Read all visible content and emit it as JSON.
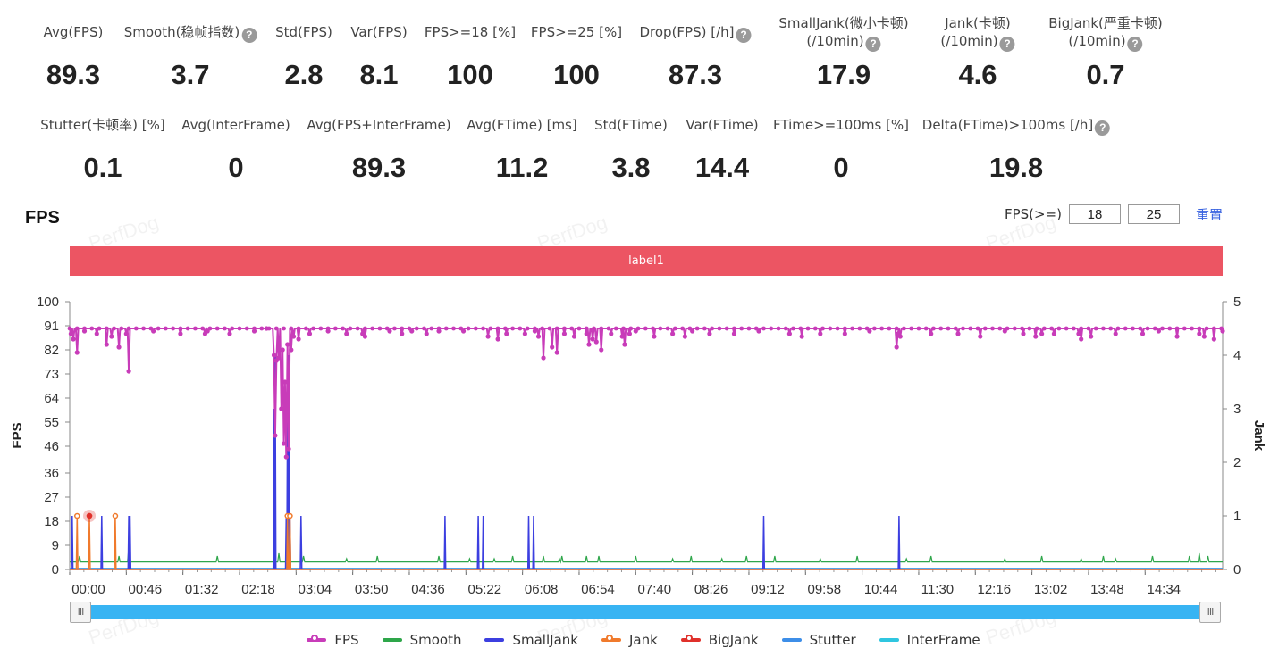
{
  "stats_row1": [
    {
      "label": "Avg(FPS)",
      "value": "89.3",
      "help": false
    },
    {
      "label": "Smooth(稳帧指数)",
      "value": "3.7",
      "help": true
    },
    {
      "label": "Std(FPS)",
      "value": "2.8",
      "help": false
    },
    {
      "label": "Var(FPS)",
      "value": "8.1",
      "help": false
    },
    {
      "label": "FPS>=18 [%]",
      "value": "100",
      "help": false
    },
    {
      "label": "FPS>=25 [%]",
      "value": "100",
      "help": false
    },
    {
      "label": "Drop(FPS) [/h]",
      "value": "87.3",
      "help": true
    },
    {
      "label": "SmallJank(微小卡顿)",
      "label2": "(/10min)",
      "value": "17.9",
      "help": true
    },
    {
      "label": "Jank(卡顿)",
      "label2": "(/10min)",
      "value": "4.6",
      "help": true
    },
    {
      "label": "BigJank(严重卡顿)",
      "label2": "(/10min)",
      "value": "0.7",
      "help": true
    }
  ],
  "stats_row2": [
    {
      "label": "Stutter(卡顿率) [%]",
      "value": "0.1",
      "help": false
    },
    {
      "label": "Avg(InterFrame)",
      "value": "0",
      "help": false
    },
    {
      "label": "Avg(FPS+InterFrame)",
      "value": "89.3",
      "help": false
    },
    {
      "label": "Avg(FTime) [ms]",
      "value": "11.2",
      "help": false
    },
    {
      "label": "Std(FTime)",
      "value": "3.8",
      "help": false
    },
    {
      "label": "Var(FTime)",
      "value": "14.4",
      "help": false
    },
    {
      "label": "FTime>=100ms [%]",
      "value": "0",
      "help": false
    },
    {
      "label": "Delta(FTime)>100ms [/h]",
      "value": "19.8",
      "help": true
    }
  ],
  "help_glyph": "?",
  "chart_title": "FPS",
  "threshold_label": "FPS(>=)",
  "threshold_values": [
    "18",
    "25"
  ],
  "reset_label": "重置",
  "label_bar_text": "label1",
  "watermark_text": "PerfDog",
  "slider_handle_glyph": "III",
  "colors": {
    "FPS": "#c83cb9",
    "Smooth": "#2ea64a",
    "SmallJank": "#3c3fe0",
    "Jank": "#f07a2c",
    "BigJank": "#e0302b",
    "Stutter": "#3d8ee8",
    "InterFrame": "#2fc6e0",
    "label_bar": "#ec5563",
    "slider": "#38b4f3"
  },
  "chart_data": {
    "type": "line",
    "title": "FPS",
    "ylabel": "FPS",
    "y2label": "Jank",
    "ylim": [
      0,
      100
    ],
    "y2lim": [
      0,
      5
    ],
    "yticks": [
      0,
      9,
      18,
      27,
      36,
      46,
      55,
      64,
      73,
      82,
      91,
      100
    ],
    "y2ticks": [
      0,
      1,
      2,
      3,
      4,
      5
    ],
    "xticks": [
      "00:00",
      "00:46",
      "01:32",
      "02:18",
      "03:04",
      "03:50",
      "04:36",
      "05:22",
      "06:08",
      "06:54",
      "07:40",
      "08:26",
      "09:12",
      "09:58",
      "10:44",
      "11:30",
      "12:16",
      "13:02",
      "13:48",
      "14:34"
    ],
    "x_unit": "seconds",
    "x_range": [
      0,
      937
    ],
    "legend": [
      "FPS",
      "Smooth",
      "SmallJank",
      "Jank",
      "BigJank",
      "Stutter",
      "InterFrame"
    ],
    "legend_position": "bottom",
    "grid": false,
    "series": [
      {
        "name": "FPS",
        "axis": "left",
        "baseline": 90,
        "points": [
          [
            1,
            88
          ],
          [
            3,
            86
          ],
          [
            6,
            81
          ],
          [
            12,
            89
          ],
          [
            22,
            88
          ],
          [
            30,
            84
          ],
          [
            34,
            87
          ],
          [
            40,
            83
          ],
          [
            46,
            88
          ],
          [
            48,
            74
          ],
          [
            68,
            89
          ],
          [
            90,
            88
          ],
          [
            110,
            88
          ],
          [
            112,
            89
          ],
          [
            130,
            88
          ],
          [
            150,
            89
          ],
          [
            160,
            90
          ],
          [
            166,
            80
          ],
          [
            167,
            50
          ],
          [
            168,
            78
          ],
          [
            170,
            79
          ],
          [
            172,
            60
          ],
          [
            173,
            82
          ],
          [
            174,
            47
          ],
          [
            175,
            70
          ],
          [
            176,
            42
          ],
          [
            177,
            84
          ],
          [
            178,
            45
          ],
          [
            180,
            82
          ],
          [
            182,
            87
          ],
          [
            186,
            86
          ],
          [
            195,
            88
          ],
          [
            210,
            89
          ],
          [
            225,
            88
          ],
          [
            238,
            88
          ],
          [
            240,
            87
          ],
          [
            260,
            89
          ],
          [
            270,
            88
          ],
          [
            278,
            89
          ],
          [
            290,
            88
          ],
          [
            300,
            89
          ],
          [
            320,
            89
          ],
          [
            340,
            87
          ],
          [
            348,
            86
          ],
          [
            355,
            88
          ],
          [
            370,
            88
          ],
          [
            378,
            89
          ],
          [
            381,
            87
          ],
          [
            385,
            79
          ],
          [
            392,
            83
          ],
          [
            396,
            81
          ],
          [
            402,
            88
          ],
          [
            410,
            87
          ],
          [
            420,
            88
          ],
          [
            422,
            84
          ],
          [
            425,
            86
          ],
          [
            428,
            85
          ],
          [
            432,
            82
          ],
          [
            440,
            88
          ],
          [
            449,
            87
          ],
          [
            451,
            84
          ],
          [
            455,
            88
          ],
          [
            460,
            89
          ],
          [
            475,
            87
          ],
          [
            490,
            88
          ],
          [
            500,
            87
          ],
          [
            506,
            89
          ],
          [
            520,
            88
          ],
          [
            540,
            88
          ],
          [
            560,
            89
          ],
          [
            585,
            88
          ],
          [
            595,
            87
          ],
          [
            610,
            88
          ],
          [
            630,
            88
          ],
          [
            650,
            89
          ],
          [
            672,
            83
          ],
          [
            673,
            88
          ],
          [
            675,
            87
          ],
          [
            700,
            88
          ],
          [
            722,
            88
          ],
          [
            740,
            87
          ],
          [
            760,
            89
          ],
          [
            775,
            88
          ],
          [
            785,
            87
          ],
          [
            790,
            88
          ],
          [
            800,
            88
          ],
          [
            820,
            88
          ],
          [
            822,
            86
          ],
          [
            830,
            87
          ],
          [
            850,
            88
          ],
          [
            872,
            88
          ],
          [
            885,
            89
          ],
          [
            900,
            87
          ],
          [
            918,
            88
          ],
          [
            922,
            87
          ],
          [
            930,
            86
          ],
          [
            937,
            89
          ]
        ]
      },
      {
        "name": "Smooth",
        "axis": "left",
        "baseline": 2.8,
        "points": [
          [
            8,
            5
          ],
          [
            40,
            5
          ],
          [
            48,
            8
          ],
          [
            120,
            5
          ],
          [
            170,
            6
          ],
          [
            177,
            18
          ],
          [
            178,
            12
          ],
          [
            190,
            5
          ],
          [
            225,
            4
          ],
          [
            250,
            5
          ],
          [
            300,
            5
          ],
          [
            325,
            4
          ],
          [
            345,
            4
          ],
          [
            360,
            5
          ],
          [
            385,
            5
          ],
          [
            398,
            4
          ],
          [
            400,
            5
          ],
          [
            420,
            5
          ],
          [
            430,
            5
          ],
          [
            460,
            5
          ],
          [
            490,
            4
          ],
          [
            505,
            5
          ],
          [
            530,
            4
          ],
          [
            550,
            5
          ],
          [
            573,
            5
          ],
          [
            610,
            4
          ],
          [
            640,
            5
          ],
          [
            680,
            4
          ],
          [
            700,
            5
          ],
          [
            760,
            4
          ],
          [
            790,
            5
          ],
          [
            822,
            4
          ],
          [
            840,
            5
          ],
          [
            850,
            4
          ],
          [
            880,
            5
          ],
          [
            910,
            5
          ],
          [
            918,
            6
          ],
          [
            925,
            5
          ]
        ]
      },
      {
        "name": "SmallJank",
        "axis": "right",
        "points": [
          [
            2,
            1
          ],
          [
            26,
            1
          ],
          [
            48,
            1
          ],
          [
            49,
            1
          ],
          [
            166,
            3
          ],
          [
            167,
            4
          ],
          [
            176,
            1
          ],
          [
            177,
            3
          ],
          [
            178,
            4
          ],
          [
            179,
            1
          ],
          [
            188,
            1
          ],
          [
            305,
            1
          ],
          [
            332,
            1
          ],
          [
            336,
            1
          ],
          [
            373,
            1
          ],
          [
            377,
            1
          ],
          [
            564,
            1
          ],
          [
            674,
            1
          ]
        ]
      },
      {
        "name": "Jank",
        "axis": "right",
        "points": [
          [
            6,
            1
          ],
          [
            16,
            1
          ],
          [
            37,
            1
          ],
          [
            177,
            1
          ],
          [
            179,
            1
          ]
        ]
      },
      {
        "name": "BigJank",
        "axis": "right",
        "points": [
          [
            16,
            1
          ]
        ]
      },
      {
        "name": "Stutter",
        "axis": "right",
        "points": []
      },
      {
        "name": "InterFrame",
        "axis": "right",
        "points": []
      }
    ]
  }
}
